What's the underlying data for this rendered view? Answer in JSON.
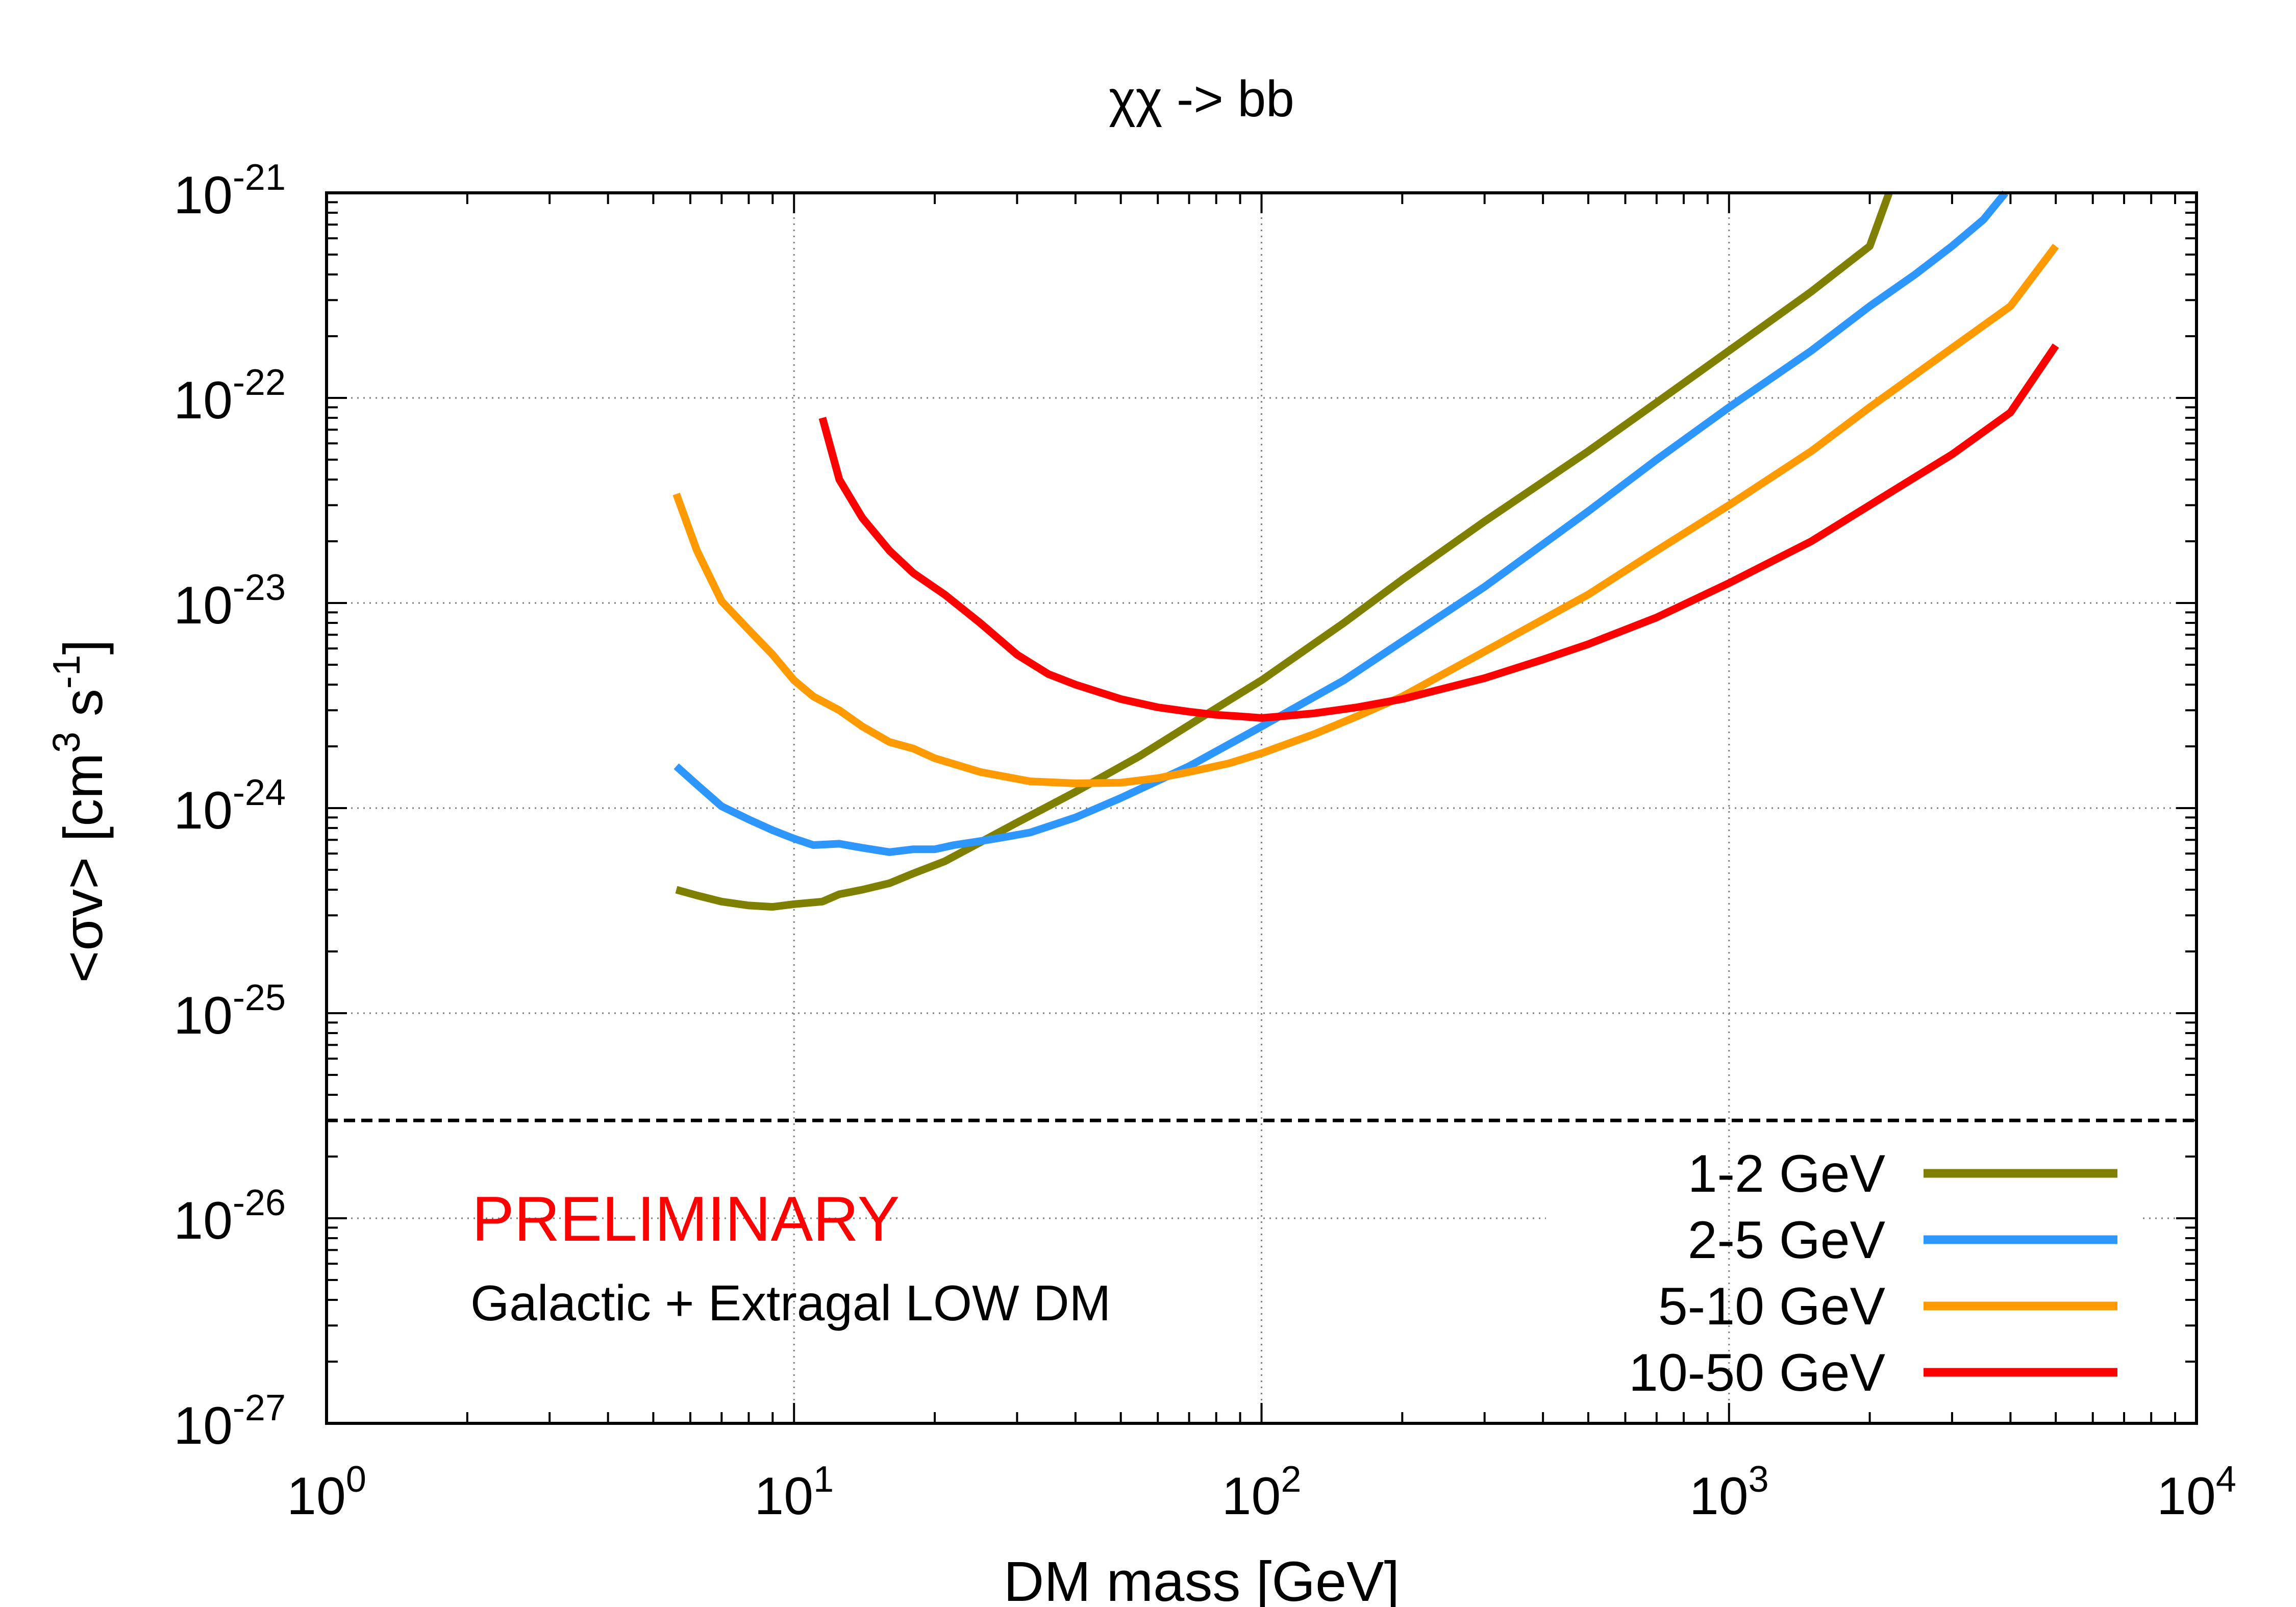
{
  "chart_data": {
    "type": "line",
    "title": "χχ -> bb",
    "xlabel": "DM mass [GeV]",
    "ylabel": "<σv> [cm3 s-1]",
    "ylabel_parts": {
      "before": "<σv> [cm",
      "sup1": "3",
      "middle": " s",
      "sup2": "-1",
      "after": "]"
    },
    "xscale": "log",
    "yscale": "log",
    "xlim": [
      1,
      10000
    ],
    "ylim": [
      1e-27,
      1e-21
    ],
    "grid": true,
    "x_ticks": [
      {
        "value": 1,
        "base": "10",
        "exp": "0"
      },
      {
        "value": 10,
        "base": "10",
        "exp": "1"
      },
      {
        "value": 100,
        "base": "10",
        "exp": "2"
      },
      {
        "value": 1000,
        "base": "10",
        "exp": "3"
      },
      {
        "value": 10000,
        "base": "10",
        "exp": "4"
      }
    ],
    "y_ticks": [
      {
        "value": 1e-21,
        "base": "10",
        "exp": "-21"
      },
      {
        "value": 1e-22,
        "base": "10",
        "exp": "-22"
      },
      {
        "value": 1e-23,
        "base": "10",
        "exp": "-23"
      },
      {
        "value": 1e-24,
        "base": "10",
        "exp": "-24"
      },
      {
        "value": 1e-25,
        "base": "10",
        "exp": "-25"
      },
      {
        "value": 1e-26,
        "base": "10",
        "exp": "-26"
      },
      {
        "value": 1e-27,
        "base": "10",
        "exp": "-27"
      }
    ],
    "reference_line": {
      "y": 3e-26,
      "style": "dashed",
      "color": "#000000"
    },
    "legend_position": "bottom-right",
    "annotations": [
      {
        "text": "PRELIMINARY",
        "color": "#ff0000"
      },
      {
        "text": "Galactic + Extragal LOW DM",
        "color": "#000000"
      }
    ],
    "series": [
      {
        "name": "1-2 GeV",
        "color": "#808000",
        "x": [
          5.6,
          6.2,
          7,
          8,
          9,
          10,
          11.5,
          12.5,
          14,
          16,
          18,
          21,
          25,
          30,
          40,
          55,
          75,
          100,
          150,
          200,
          300,
          500,
          700,
          1000,
          1500,
          2000,
          2200
        ],
        "y": [
          4e-25,
          3.75e-25,
          3.5e-25,
          3.35e-25,
          3.3e-25,
          3.4e-25,
          3.5e-25,
          3.8e-25,
          4e-25,
          4.3e-25,
          4.8e-25,
          5.5e-25,
          6.8e-25,
          8.5e-25,
          1.2e-24,
          1.8e-24,
          2.8e-24,
          4.2e-24,
          8e-24,
          1.3e-23,
          2.5e-23,
          5.5e-23,
          9.5e-23,
          1.7e-22,
          3.3e-22,
          5.5e-22,
          1e-21
        ]
      },
      {
        "name": "2-5 GeV",
        "color": "#2e96ff",
        "x": [
          5.6,
          6.2,
          7,
          8,
          9,
          10,
          11,
          12.5,
          14,
          16,
          18,
          20,
          22,
          25,
          28,
          32,
          40,
          50,
          70,
          100,
          150,
          200,
          300,
          500,
          700,
          1000,
          1500,
          2000,
          2500,
          3000,
          3500,
          3900
        ],
        "y": [
          1.6e-24,
          1.3e-24,
          1.02e-24,
          8.8e-25,
          7.8e-25,
          7.1e-25,
          6.6e-25,
          6.7e-25,
          6.4e-25,
          6.1e-25,
          6.3e-25,
          6.3e-25,
          6.6e-25,
          6.9e-25,
          7.2e-25,
          7.6e-25,
          9e-25,
          1.12e-24,
          1.6e-24,
          2.5e-24,
          4.2e-24,
          6.5e-24,
          1.2e-23,
          2.8e-23,
          5e-23,
          9e-23,
          1.7e-22,
          2.8e-22,
          4e-22,
          5.5e-22,
          7.4e-22,
          1e-21
        ]
      },
      {
        "name": "5-10 GeV",
        "color": "#ff9a00",
        "x": [
          5.6,
          6.2,
          7,
          8,
          9,
          10,
          11,
          12.5,
          14,
          16,
          18,
          20,
          25,
          32,
          40,
          50,
          60,
          70,
          85,
          100,
          130,
          160,
          200,
          300,
          500,
          700,
          1000,
          1500,
          2000,
          3000,
          4000,
          5000
        ],
        "y": [
          3.4e-23,
          1.8e-23,
          1.02e-23,
          7.4e-24,
          5.6e-24,
          4.2e-24,
          3.5e-24,
          3e-24,
          2.5e-24,
          2.1e-24,
          1.95e-24,
          1.75e-24,
          1.5e-24,
          1.35e-24,
          1.32e-24,
          1.33e-24,
          1.4e-24,
          1.5e-24,
          1.65e-24,
          1.85e-24,
          2.3e-24,
          2.8e-24,
          3.5e-24,
          5.8e-24,
          1.1e-23,
          1.8e-23,
          3e-23,
          5.5e-23,
          9e-23,
          1.75e-22,
          2.8e-22,
          5.5e-22
        ]
      },
      {
        "name": "10-50 GeV",
        "color": "#ff0000",
        "x": [
          11.5,
          12.5,
          14,
          16,
          18,
          21,
          25,
          30,
          35,
          40,
          50,
          60,
          70,
          80,
          90,
          100,
          110,
          130,
          160,
          200,
          300,
          400,
          500,
          700,
          1000,
          1500,
          2000,
          3000,
          4000,
          5000
        ],
        "y": [
          8e-23,
          4e-23,
          2.6e-23,
          1.8e-23,
          1.4e-23,
          1.1e-23,
          8e-24,
          5.6e-24,
          4.5e-24,
          4e-24,
          3.4e-24,
          3.1e-24,
          2.95e-24,
          2.85e-24,
          2.8e-24,
          2.75e-24,
          2.8e-24,
          2.9e-24,
          3.1e-24,
          3.4e-24,
          4.3e-24,
          5.3e-24,
          6.3e-24,
          8.5e-24,
          1.25e-23,
          2e-23,
          3e-23,
          5.3e-23,
          8.5e-23,
          1.8e-22
        ]
      }
    ]
  }
}
